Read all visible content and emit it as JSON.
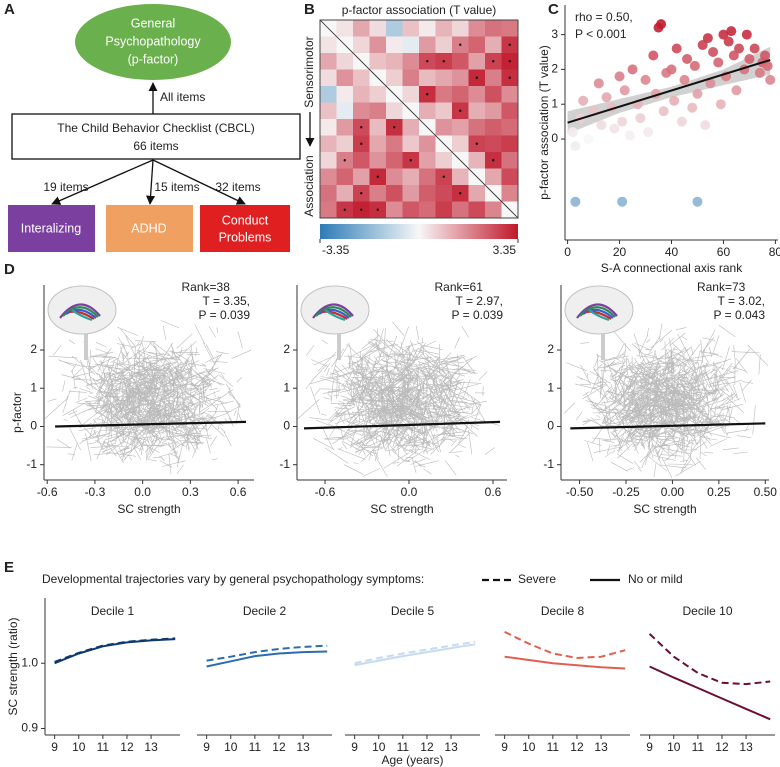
{
  "diagram": {
    "label": "A",
    "root": [
      "General",
      "Psychopathology",
      "(p-factor)"
    ],
    "instrument": [
      "The Child Behavior Checklist (CBCL)",
      "66 items"
    ],
    "root_edge": "All items",
    "subscales": [
      {
        "lines": [
          "Interalizing"
        ],
        "items": "19 items",
        "color": "#7b3fa0"
      },
      {
        "lines": [
          "ADHD"
        ],
        "items": "15 items",
        "color": "#f0a060"
      },
      {
        "lines": [
          "Conduct",
          "Problems"
        ],
        "items": "32 items",
        "color": "#e02020"
      }
    ]
  },
  "color_scale": {
    "range": [
      -3.35,
      3.35
    ],
    "colors": [
      "#2c7bb6",
      "#f7f7f7",
      "#c0182b"
    ]
  },
  "legend": {
    "title": "Developmental trajectories vary by general psychopathology symptoms:",
    "entries": [
      {
        "name": "Severe",
        "style": "dashed"
      },
      {
        "name": "No or mild",
        "style": "solid"
      }
    ]
  },
  "chart_data": [
    {
      "type": "heatmap",
      "label": "B",
      "title": "p-factor association (T value)",
      "axis_labels": [
        "Sensorimotor",
        "Association"
      ],
      "values": [
        [
          0
        ],
        [
          0.3,
          0
        ],
        [
          1.2,
          0.5,
          0
        ],
        [
          0.4,
          1.5,
          0.8,
          0
        ],
        [
          -1.2,
          0.2,
          1.0,
          0.6,
          0
        ],
        [
          0.8,
          -0.3,
          1.6,
          1.8,
          0.5,
          0
        ],
        [
          0.2,
          1.4,
          2.6,
          0.9,
          3.0,
          1.1,
          0
        ],
        [
          1.0,
          0.6,
          2.8,
          1.2,
          1.9,
          0.7,
          1.5,
          0
        ],
        [
          0.5,
          1.8,
          2.4,
          1.5,
          2.2,
          2.9,
          1.3,
          0.6,
          0
        ],
        [
          1.6,
          2.2,
          1.3,
          3.1,
          1.6,
          1.1,
          2.0,
          2.7,
          1.0,
          0
        ],
        [
          2.0,
          1.1,
          2.7,
          1.8,
          2.5,
          1.4,
          2.3,
          2.6,
          3.0,
          1.2,
          0
        ],
        [
          1.9,
          2.9,
          3.2,
          3.0,
          1.6,
          2.4,
          2.1,
          2.8,
          2.0,
          2.6,
          1.7,
          0
        ]
      ],
      "significant": [
        [
          6,
          2
        ],
        [
          6,
          4
        ],
        [
          7,
          2
        ],
        [
          8,
          5
        ],
        [
          9,
          3
        ],
        [
          9,
          7
        ],
        [
          10,
          8
        ],
        [
          11,
          1
        ],
        [
          11,
          2
        ],
        [
          11,
          3
        ],
        [
          10,
          2
        ],
        [
          8,
          1
        ]
      ],
      "colorbar_ticks": [
        -3.35,
        3.35
      ]
    },
    {
      "type": "scatter",
      "label": "C",
      "annotations": [
        "rho = 0.50,",
        "P < 0.001"
      ],
      "xlabel": "S-A connectional axis rank",
      "ylabel": "p-factor association (T value)",
      "x": [
        2,
        3,
        5,
        6,
        8,
        10,
        12,
        13,
        15,
        17,
        18,
        20,
        21,
        22,
        24,
        25,
        27,
        28,
        30,
        31,
        33,
        34,
        35,
        36,
        37,
        38,
        40,
        41,
        42,
        44,
        45,
        46,
        48,
        49,
        50,
        52,
        53,
        54,
        55,
        56,
        58,
        59,
        60,
        61,
        62,
        63,
        64,
        65,
        66,
        68,
        69,
        70,
        72,
        74,
        75,
        76,
        77,
        78,
        3,
        21,
        50
      ],
      "y": [
        0.2,
        -0.2,
        0.6,
        1.1,
        0.0,
        0.8,
        1.6,
        0.4,
        1.2,
        0.9,
        0.3,
        1.8,
        0.5,
        1.4,
        0.1,
        2.0,
        1.0,
        0.6,
        1.7,
        0.2,
        2.4,
        1.3,
        3.2,
        3.3,
        0.8,
        1.9,
        2.0,
        1.1,
        2.6,
        0.5,
        1.7,
        2.3,
        0.9,
        2.1,
        1.3,
        2.7,
        0.4,
        2.9,
        1.6,
        2.5,
        2.2,
        1.0,
        3.0,
        1.8,
        2.8,
        3.1,
        2.4,
        1.4,
        2.6,
        2.0,
        3.0,
        2.3,
        2.6,
        1.9,
        2.2,
        2.4,
        2.1,
        1.7,
        -1.8,
        -1.8,
        -1.8
      ],
      "fit": {
        "x": [
          0,
          78
        ],
        "y": [
          0.47,
          2.27
        ]
      },
      "band": {
        "x": [
          0,
          20,
          40,
          60,
          78
        ],
        "lower": [
          0.15,
          0.75,
          1.2,
          1.55,
          1.85
        ],
        "upper": [
          0.8,
          1.15,
          1.5,
          2.0,
          2.65
        ]
      },
      "xlim": [
        -1,
        81
      ],
      "ylim": [
        -2.9,
        3.85
      ],
      "xticks": [
        0,
        20,
        40,
        60,
        80
      ],
      "yticks": [
        0,
        1,
        2,
        3
      ]
    },
    {
      "type": "trajectory",
      "label": "D",
      "title": "Rank=38",
      "annotations": [
        "T = 3.35,",
        "P = 0.039"
      ],
      "xlabel": "SC strength",
      "ylabel": "p-factor",
      "fit": {
        "x": [
          -0.55,
          0.65
        ],
        "y": [
          0.0,
          0.12
        ]
      },
      "xlim": [
        -0.62,
        0.7
      ],
      "ylim": [
        -1.4,
        3.7
      ],
      "xticks": [
        -0.6,
        -0.3,
        {
          "value": 0,
          "label": "0.0"
        },
        0.3,
        0.6
      ],
      "yticks": [
        -1,
        0,
        1,
        2
      ]
    },
    {
      "type": "trajectory",
      "title": "Rank=61",
      "annotations": [
        "T = 2.97,",
        "P = 0.039"
      ],
      "xlabel": "SC strength",
      "fit": {
        "x": [
          -0.75,
          0.65
        ],
        "y": [
          -0.05,
          0.12
        ]
      },
      "xlim": [
        -0.8,
        0.7
      ],
      "ylim": [
        -1.4,
        3.7
      ],
      "xticks": [
        -0.6,
        {
          "value": 0,
          "label": "0.0"
        },
        0.6
      ],
      "yticks": [
        -1,
        0,
        1,
        2
      ]
    },
    {
      "type": "trajectory",
      "title": "Rank=73",
      "annotations": [
        "T = 3.02,",
        "P = 0.043"
      ],
      "xlabel": "SC strength",
      "fit": {
        "x": [
          -0.55,
          0.5
        ],
        "y": [
          -0.05,
          0.08
        ]
      },
      "xlim": [
        -0.6,
        0.52
      ],
      "ylim": [
        -1.4,
        3.7
      ],
      "xticks": [
        {
          "value": -0.5,
          "label": "-0.50"
        },
        -0.25,
        {
          "value": 0,
          "label": "0.00"
        },
        0.25,
        {
          "value": 0.5,
          "label": "0.50"
        }
      ],
      "yticks": [
        -1,
        0,
        1,
        2
      ]
    },
    {
      "type": "line",
      "label": "E",
      "title": "Decile 1",
      "ylabel": "SC strength (ratio)",
      "x": [
        9,
        10,
        11,
        12,
        13,
        14
      ],
      "series": [
        {
          "style": "dashed",
          "color": "#0d3a6e",
          "values": [
            1.002,
            1.016,
            1.027,
            1.033,
            1.036,
            1.038
          ]
        },
        {
          "style": "solid",
          "color": "#0d3a6e",
          "values": [
            1.0,
            1.015,
            1.026,
            1.032,
            1.035,
            1.037
          ]
        }
      ],
      "xlim": [
        8.6,
        14.2
      ],
      "ylim": [
        0.89,
        1.1
      ],
      "xticks": [
        9,
        10,
        11,
        12,
        13
      ],
      "yticks": [
        0.9,
        {
          "value": 1,
          "label": "1.0"
        }
      ]
    },
    {
      "type": "line",
      "title": "Decile 2",
      "x": [
        9,
        10,
        11,
        12,
        13,
        14
      ],
      "series": [
        {
          "style": "dashed",
          "color": "#2b6cb0",
          "values": [
            1.004,
            1.01,
            1.017,
            1.022,
            1.025,
            1.027
          ]
        },
        {
          "style": "solid",
          "color": "#2b6cb0",
          "values": [
            0.995,
            1.003,
            1.011,
            1.015,
            1.017,
            1.018
          ]
        }
      ],
      "xlim": [
        8.6,
        14.2
      ],
      "ylim": [
        0.89,
        1.1
      ],
      "xticks": [
        9,
        10,
        11,
        12,
        13
      ]
    },
    {
      "type": "line",
      "title": "Decile 5",
      "xlabel": "Age (years)",
      "x": [
        9,
        10,
        11,
        12,
        13,
        14
      ],
      "series": [
        {
          "style": "dashed",
          "color": "#c6dbef",
          "values": [
            1.0,
            1.008,
            1.015,
            1.021,
            1.027,
            1.033
          ]
        },
        {
          "style": "solid",
          "color": "#c6dbef",
          "values": [
            0.997,
            1.004,
            1.011,
            1.017,
            1.023,
            1.029
          ]
        }
      ],
      "xlim": [
        8.6,
        14.2
      ],
      "ylim": [
        0.89,
        1.1
      ],
      "xticks": [
        9,
        10,
        11,
        12,
        13
      ]
    },
    {
      "type": "line",
      "title": "Decile 8",
      "x": [
        9,
        10,
        11,
        12,
        13,
        14
      ],
      "series": [
        {
          "style": "dashed",
          "color": "#e06050",
          "values": [
            1.048,
            1.03,
            1.015,
            1.008,
            1.01,
            1.02
          ]
        },
        {
          "style": "solid",
          "color": "#e06050",
          "values": [
            1.01,
            1.005,
            1.0,
            0.997,
            0.994,
            0.992
          ]
        }
      ],
      "xlim": [
        8.6,
        14.2
      ],
      "ylim": [
        0.89,
        1.1
      ],
      "xticks": [
        9,
        10,
        11,
        12,
        13
      ]
    },
    {
      "type": "line",
      "title": "Decile 10",
      "x": [
        9,
        10,
        11,
        12,
        13,
        14
      ],
      "series": [
        {
          "style": "dashed",
          "color": "#6b0f2e",
          "values": [
            1.045,
            1.01,
            0.985,
            0.97,
            0.968,
            0.972
          ]
        },
        {
          "style": "solid",
          "color": "#6b0f2e",
          "values": [
            0.995,
            0.978,
            0.962,
            0.946,
            0.93,
            0.914
          ]
        }
      ],
      "xlim": [
        8.6,
        14.2
      ],
      "ylim": [
        0.89,
        1.1
      ],
      "xticks": [
        9,
        10,
        11,
        12,
        13
      ]
    }
  ]
}
